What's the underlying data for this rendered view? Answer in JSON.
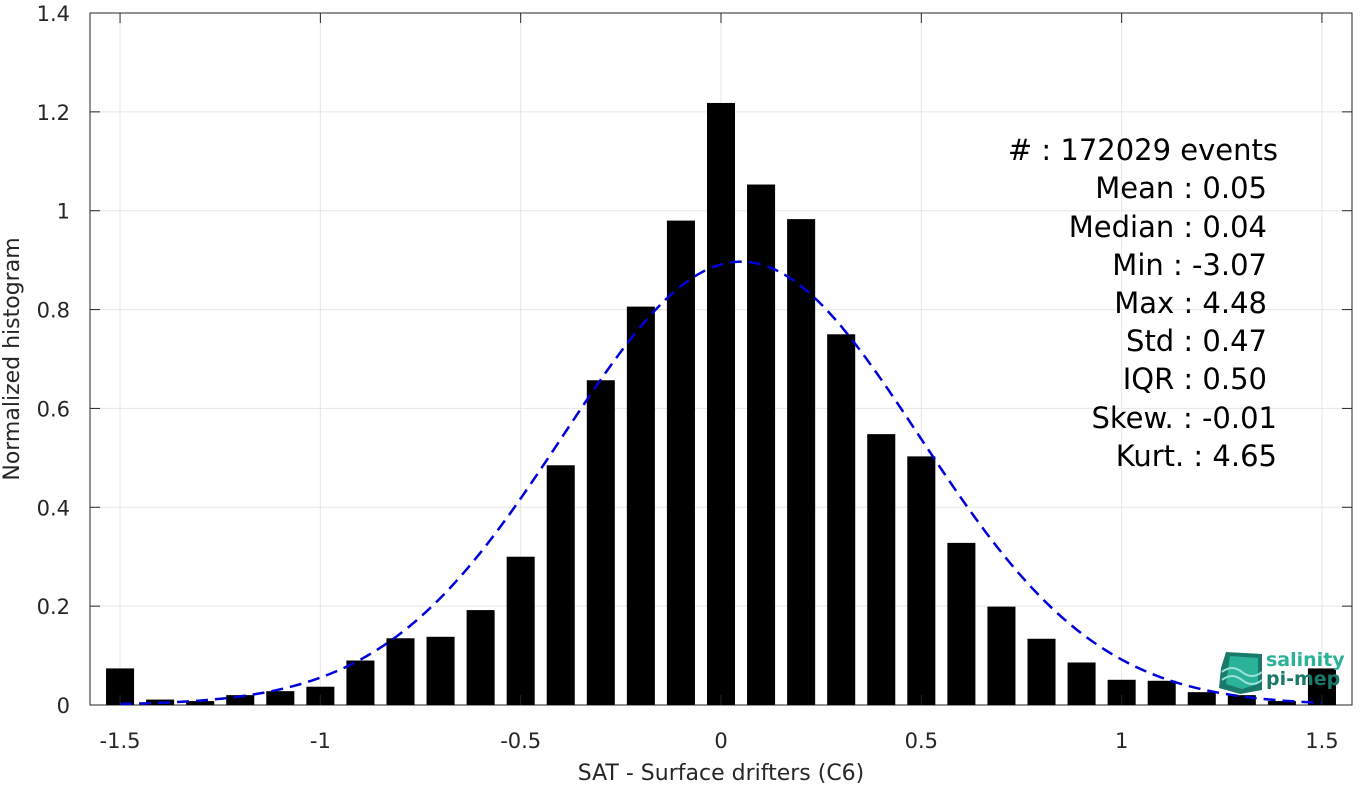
{
  "chart_data": {
    "type": "bar",
    "xlabel": "SAT - Surface drifters (C6)",
    "ylabel": "Normalized histogram",
    "xlim": [
      -1.575,
      1.575
    ],
    "ylim": [
      0,
      1.4
    ],
    "x_ticks": [
      -1.5,
      -1,
      -0.5,
      0,
      0.5,
      1,
      1.5
    ],
    "x_tick_labels": [
      "-1.5",
      "-1",
      "-0.5",
      "0",
      "0.5",
      "1",
      "1.5"
    ],
    "y_ticks": [
      0,
      0.2,
      0.4,
      0.6,
      0.8,
      1,
      1.2,
      1.4
    ],
    "y_tick_labels": [
      "0",
      "0.2",
      "0.4",
      "0.6",
      "0.8",
      "1",
      "1.2",
      "1.4"
    ],
    "grid": true,
    "bin_width": 0.1,
    "bar_color": "#000000",
    "bars": {
      "x": [
        -1.5,
        -1.4,
        -1.3,
        -1.2,
        -1.1,
        -1.0,
        -0.9,
        -0.8,
        -0.7,
        -0.6,
        -0.5,
        -0.4,
        -0.3,
        -0.2,
        -0.1,
        0.0,
        0.1,
        0.2,
        0.3,
        0.4,
        0.5,
        0.6,
        0.7,
        0.8,
        0.9,
        1.0,
        1.1,
        1.2,
        1.3,
        1.4,
        1.5
      ],
      "values": [
        0.074,
        0.011,
        0.008,
        0.02,
        0.028,
        0.037,
        0.09,
        0.135,
        0.138,
        0.192,
        0.3,
        0.485,
        0.657,
        0.806,
        0.98,
        1.218,
        1.053,
        0.983,
        0.75,
        0.548,
        0.503,
        0.328,
        0.199,
        0.134,
        0.086,
        0.051,
        0.049,
        0.026,
        0.02,
        0.008,
        0.074
      ]
    },
    "fit": {
      "name": "",
      "type": "gaussian",
      "color": "#0000dd",
      "style": "dashed",
      "mean": 0.05,
      "std": 0.445,
      "peak": 0.897,
      "x_range": [
        -1.5,
        1.5
      ]
    },
    "stats": [
      "#  : 172029 events",
      "Mean : 0.05",
      "Median : 0.04",
      "Min : -3.07",
      "Max : 4.48",
      "Std : 0.47",
      "IQR : 0.50",
      "Skew. : -0.01",
      "Kurt. : 4.65"
    ]
  },
  "logo": {
    "line1": "salinity",
    "line2": "pi-mep",
    "color_light": "#2bb39a",
    "color_dark": "#1a7a6a"
  }
}
